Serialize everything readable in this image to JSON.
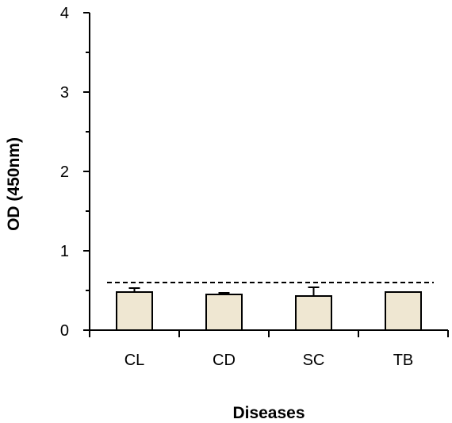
{
  "chart_data": {
    "type": "bar",
    "title": "",
    "xlabel": "Diseases",
    "ylabel": "OD (450nm)",
    "categories": [
      "CL",
      "CD",
      "SC",
      "TB"
    ],
    "values": [
      0.48,
      0.45,
      0.43,
      0.48
    ],
    "error_bars": [
      0.05,
      0.02,
      0.11,
      0.0
    ],
    "ylim": [
      0,
      4
    ],
    "yticks": [
      "0",
      "1",
      "2",
      "3",
      "4"
    ],
    "cutoff_line": {
      "value": 0.6,
      "style": "dashed"
    },
    "bar_color": "#efe7d2",
    "bar_edge_color": "#000000",
    "grid": false,
    "legend": "none"
  }
}
